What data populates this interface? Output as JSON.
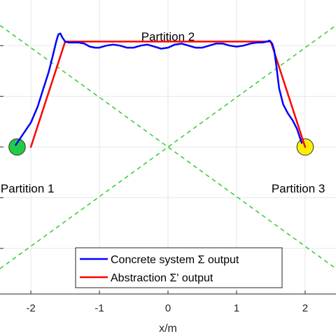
{
  "chart_data": {
    "type": "line",
    "xlabel": "x/m",
    "ylabel": "",
    "xlim": [
      -2.45,
      2.45
    ],
    "ylim": [
      -1.45,
      1.45
    ],
    "x_ticks": [
      -2,
      -1,
      0,
      1,
      2
    ],
    "x_tick_labels": [
      "-2",
      "-1",
      "0",
      "1",
      "2"
    ],
    "y_ticks": [
      -1.0,
      -0.5,
      0.0,
      0.5,
      1.0
    ],
    "grid": true,
    "legend": {
      "placement": "bottom-center",
      "entries": [
        {
          "label": "Concrete system Σ output",
          "color": "#0000ff"
        },
        {
          "label": "Abstraction Σ' output",
          "color": "#ff0000"
        }
      ]
    },
    "annotations": [
      {
        "text": "Partition 2",
        "x": 0.0,
        "y": 1.05
      },
      {
        "text": "Partition 1",
        "x": -2.05,
        "y": -0.45
      },
      {
        "text": "Partition 3",
        "x": 1.9,
        "y": -0.45
      }
    ],
    "regions": [
      {
        "shape": "circle",
        "center": [
          -2.2,
          0.0
        ],
        "radius": 0.12,
        "color": "#22cc44"
      },
      {
        "shape": "circle",
        "center": [
          2.0,
          0.0
        ],
        "radius": 0.12,
        "color": "#ffee00"
      }
    ],
    "partition_lines": {
      "color": "#33cc33",
      "style": "dashed",
      "lines": [
        {
          "x": [
            -2.45,
            2.45
          ],
          "y": [
            1.2,
            -1.2
          ]
        },
        {
          "x": [
            -2.45,
            2.45
          ],
          "y": [
            -1.2,
            1.2
          ]
        }
      ]
    },
    "series": [
      {
        "name": "Concrete system Σ output",
        "color": "#0000ff",
        "x": [
          -2.22,
          -2.12,
          -2.0,
          -1.9,
          -1.82,
          -1.74,
          -1.68,
          -1.63,
          -1.6,
          -1.57,
          -1.54,
          -1.5,
          -1.45,
          -1.38,
          -1.3,
          -1.22,
          -1.14,
          -1.06,
          -1.0,
          -0.9,
          -0.8,
          -0.7,
          -0.6,
          -0.5,
          -0.4,
          -0.3,
          -0.2,
          -0.1,
          0.0,
          0.1,
          0.2,
          0.3,
          0.4,
          0.5,
          0.6,
          0.7,
          0.8,
          0.9,
          1.0,
          1.1,
          1.2,
          1.3,
          1.38,
          1.44,
          1.48,
          1.52,
          1.55,
          1.58,
          1.62,
          1.68,
          1.75,
          1.82,
          1.88,
          1.92,
          1.95
        ],
        "y": [
          0.02,
          0.12,
          0.24,
          0.4,
          0.57,
          0.74,
          0.9,
          1.04,
          1.11,
          1.12,
          1.08,
          1.04,
          1.03,
          1.03,
          1.03,
          1.02,
          0.99,
          0.98,
          0.98,
          1.0,
          1.01,
          1.0,
          0.98,
          0.98,
          1.0,
          1.01,
          0.99,
          0.97,
          0.98,
          1.01,
          1.02,
          1.0,
          0.98,
          0.98,
          1.0,
          1.02,
          1.02,
          1.0,
          0.99,
          1.0,
          1.02,
          1.03,
          1.03,
          1.04,
          1.05,
          1.02,
          0.95,
          0.8,
          0.58,
          0.42,
          0.33,
          0.26,
          0.18,
          0.1,
          0.04
        ]
      },
      {
        "name": "Abstraction Σ' output",
        "color": "#ff0000",
        "x": [
          -2.0,
          -1.5,
          1.5,
          2.0
        ],
        "y": [
          0.0,
          1.04,
          1.04,
          0.0
        ]
      }
    ]
  }
}
